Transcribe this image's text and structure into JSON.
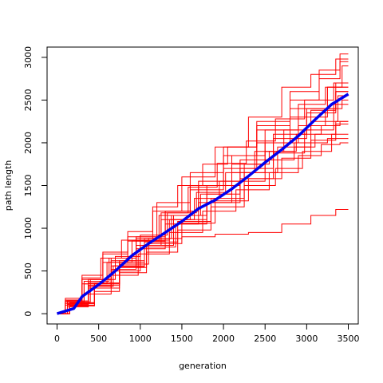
{
  "chart_data": {
    "type": "line",
    "title": "",
    "xlabel": "generation",
    "ylabel": "path length",
    "xlim": [
      -120,
      3620
    ],
    "ylim": [
      -120,
      3120
    ],
    "x_ticks": [
      0,
      500,
      1000,
      1500,
      2000,
      2500,
      3000,
      3500
    ],
    "y_ticks": [
      0,
      500,
      1000,
      1500,
      2000,
      2500,
      3000
    ],
    "grid": false,
    "legend": "none",
    "colors": {
      "runs": "#ff0000",
      "mean": "#0000ee"
    },
    "runs": [
      {
        "x": [
          0,
          200,
          400,
          700,
          1000,
          1400,
          1800,
          2200,
          2600,
          3000,
          3300,
          3500
        ],
        "y": [
          0,
          150,
          400,
          700,
          900,
          1300,
          1650,
          1950,
          2250,
          2600,
          2850,
          3040
        ]
      },
      {
        "x": [
          0,
          200,
          400,
          700,
          1000,
          1300,
          1700,
          2100,
          2500,
          2900,
          3200,
          3500
        ],
        "y": [
          0,
          100,
          350,
          600,
          850,
          1200,
          1600,
          1950,
          2300,
          2650,
          2800,
          2980
        ]
      },
      {
        "x": [
          0,
          250,
          500,
          800,
          1100,
          1400,
          1800,
          2200,
          2600,
          3000,
          3300,
          3500
        ],
        "y": [
          0,
          120,
          330,
          560,
          800,
          1100,
          1500,
          1850,
          2150,
          2500,
          2750,
          2950
        ]
      },
      {
        "x": [
          0,
          200,
          450,
          800,
          1100,
          1500,
          1900,
          2300,
          2700,
          3100,
          3350,
          3500
        ],
        "y": [
          0,
          140,
          380,
          650,
          850,
          1200,
          1550,
          1850,
          2150,
          2450,
          2650,
          2900
        ]
      },
      {
        "x": [
          0,
          250,
          500,
          800,
          1200,
          1600,
          2000,
          2400,
          2800,
          3200,
          3500
        ],
        "y": [
          0,
          100,
          300,
          500,
          800,
          1150,
          1500,
          1800,
          2100,
          2400,
          2700
        ]
      },
      {
        "x": [
          0,
          200,
          450,
          750,
          1050,
          1400,
          1800,
          2200,
          2600,
          3000,
          3500
        ],
        "y": [
          0,
          120,
          350,
          600,
          850,
          1150,
          1450,
          1700,
          2000,
          2300,
          2650
        ]
      },
      {
        "x": [
          0,
          300,
          600,
          900,
          1200,
          1600,
          2000,
          2400,
          2800,
          3200,
          3500
        ],
        "y": [
          0,
          100,
          300,
          550,
          800,
          1100,
          1400,
          1700,
          2050,
          2350,
          2600
        ]
      },
      {
        "x": [
          0,
          250,
          500,
          850,
          1250,
          1650,
          2050,
          2450,
          2850,
          3250,
          3500
        ],
        "y": [
          0,
          110,
          320,
          560,
          840,
          1080,
          1350,
          1650,
          1950,
          2250,
          2550
        ]
      },
      {
        "x": [
          0,
          300,
          600,
          900,
          1250,
          1600,
          2000,
          2400,
          2800,
          3150,
          3500
        ],
        "y": [
          0,
          120,
          330,
          540,
          780,
          1050,
          1300,
          1580,
          1880,
          2150,
          2450
        ]
      },
      {
        "x": [
          0,
          250,
          500,
          800,
          1100,
          1500,
          1900,
          2300,
          2700,
          3100,
          3350,
          3500
        ],
        "y": [
          0,
          150,
          400,
          650,
          900,
          1200,
          1500,
          1750,
          2000,
          2200,
          2400,
          2500
        ]
      },
      {
        "x": [
          0,
          300,
          600,
          900,
          1200,
          1550,
          1900,
          2300,
          2700,
          3050,
          3300,
          3500
        ],
        "y": [
          0,
          120,
          350,
          600,
          880,
          1150,
          1400,
          1650,
          1900,
          2100,
          2200,
          2250
        ]
      },
      {
        "x": [
          0,
          250,
          500,
          800,
          1100,
          1500,
          1900,
          2300,
          2700,
          3000,
          3200,
          3500
        ],
        "y": [
          0,
          100,
          300,
          520,
          760,
          1050,
          1300,
          1550,
          1800,
          1950,
          2100,
          2220
        ]
      },
      {
        "x": [
          0,
          300,
          600,
          900,
          1250,
          1650,
          2050,
          2450,
          2800,
          3100,
          3500
        ],
        "y": [
          0,
          90,
          260,
          480,
          720,
          980,
          1250,
          1500,
          1700,
          1900,
          2100
        ]
      },
      {
        "x": [
          0,
          250,
          500,
          800,
          1150,
          1550,
          1950,
          2350,
          2750,
          3050,
          3300,
          3500
        ],
        "y": [
          0,
          80,
          230,
          450,
          700,
          950,
          1200,
          1450,
          1650,
          1850,
          1980,
          2000
        ]
      },
      {
        "x": [
          0,
          300,
          600,
          900,
          1200,
          1500,
          1800,
          2100,
          2400,
          2700,
          3000,
          3500
        ],
        "y": [
          0,
          120,
          360,
          620,
          860,
          1100,
          1350,
          1550,
          1750,
          1900,
          2000,
          2050
        ]
      },
      {
        "x": [
          0,
          200,
          400,
          700,
          1000,
          1300,
          1600,
          1900,
          2200,
          2600,
          3000,
          3500
        ],
        "y": [
          0,
          180,
          450,
          720,
          960,
          1250,
          1500,
          1750,
          1950,
          2200,
          2400,
          2650
        ]
      },
      {
        "x": [
          0,
          250,
          550,
          850,
          1150,
          1500,
          1850,
          2200,
          2550,
          2900,
          3200,
          3500
        ],
        "y": [
          0,
          140,
          400,
          670,
          920,
          1180,
          1420,
          1650,
          1900,
          2150,
          2380,
          2600
        ]
      },
      {
        "x": [
          0,
          300,
          600,
          900,
          1300,
          1700,
          2100,
          2500,
          2900,
          3200,
          3500
        ],
        "y": [
          0,
          130,
          350,
          580,
          820,
          1060,
          1320,
          1580,
          1820,
          2030,
          2250
        ]
      },
      {
        "x": [
          0,
          200,
          400,
          650,
          900,
          1300,
          1700,
          2100,
          2500,
          2900,
          3200,
          3500
        ],
        "y": [
          0,
          160,
          420,
          650,
          860,
          880,
          900,
          930,
          950,
          1050,
          1150,
          1220
        ]
      },
      {
        "x": [
          0,
          250,
          500,
          800,
          1100,
          1400,
          1750,
          2100,
          2450,
          2800,
          3150,
          3500
        ],
        "y": [
          0,
          120,
          360,
          620,
          880,
          1180,
          1480,
          1760,
          2020,
          2280,
          2500,
          2700
        ]
      }
    ],
    "mean": {
      "x": [
        0,
        200,
        300,
        500,
        700,
        900,
        1100,
        1300,
        1500,
        1700,
        1900,
        2100,
        2300,
        2500,
        2700,
        2900,
        3100,
        3300,
        3500
      ],
      "y": [
        0,
        60,
        200,
        340,
        500,
        680,
        820,
        950,
        1080,
        1230,
        1330,
        1460,
        1610,
        1770,
        1920,
        2080,
        2270,
        2450,
        2570
      ]
    }
  }
}
